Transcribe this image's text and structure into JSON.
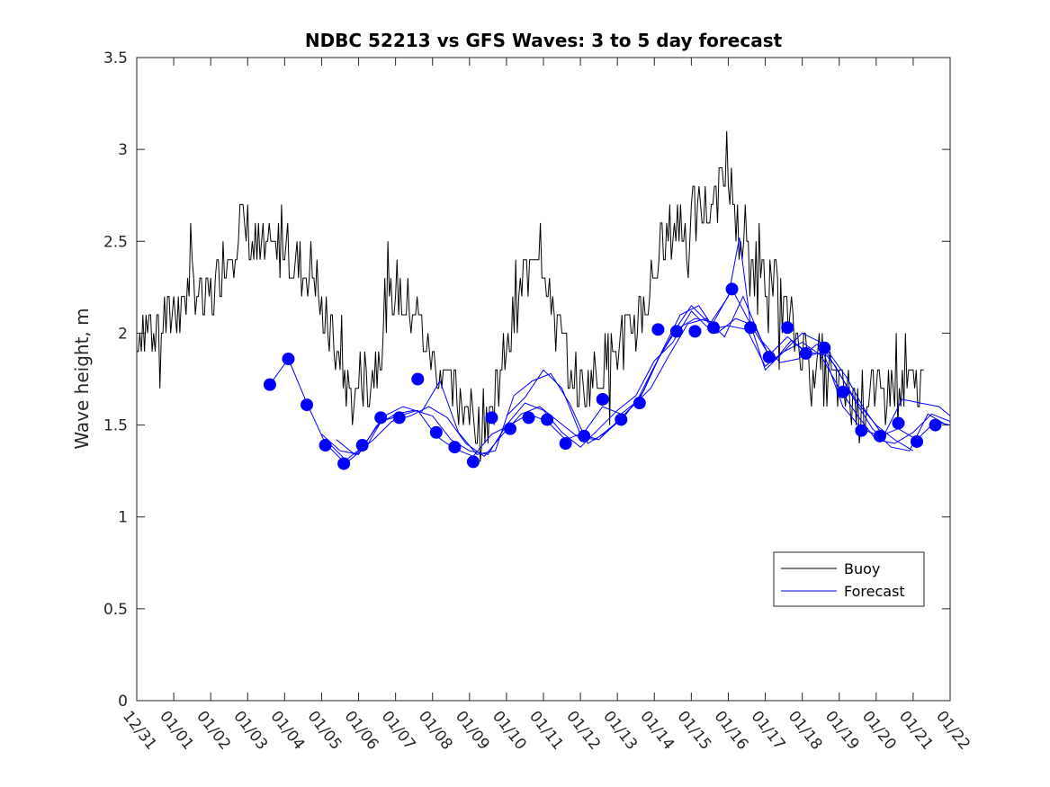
{
  "chart_data": {
    "type": "line",
    "title": "NDBC 52213 vs GFS Waves: 3 to 5 day forecast",
    "xlabel": "",
    "ylabel": "Wave height, m",
    "ylim": [
      0,
      3.5
    ],
    "xlim_days": [
      0,
      22
    ],
    "yticks": [
      "0",
      "0.5",
      "1",
      "1.5",
      "2",
      "2.5",
      "3",
      "3.5"
    ],
    "xticks": [
      "12/31",
      "01/01",
      "01/02",
      "01/03",
      "01/04",
      "01/05",
      "01/06",
      "01/07",
      "01/08",
      "01/09",
      "01/10",
      "01/11",
      "01/12",
      "01/13",
      "01/14",
      "01/15",
      "01/16",
      "01/17",
      "01/18",
      "01/19",
      "01/20",
      "01/21",
      "01/22"
    ],
    "legend": {
      "position": "lower-right",
      "entries": [
        "Buoy",
        "Forecast"
      ]
    },
    "colors": {
      "buoy": "#000000",
      "forecast": "#0000ff",
      "axes": "#262626"
    },
    "buoy": {
      "name": "Buoy",
      "x": [
        0.0,
        0.1,
        0.3,
        0.5,
        0.7,
        1.0,
        1.2,
        1.5,
        1.8,
        2.0,
        2.3,
        2.6,
        2.9,
        3.2,
        3.5,
        3.8,
        4.1,
        4.3,
        4.5,
        4.7,
        4.9,
        5.1,
        5.3,
        5.5,
        5.7,
        5.9,
        6.1,
        6.3,
        6.5,
        6.7,
        6.9,
        7.1,
        7.3,
        7.5,
        7.7,
        7.9,
        8.1,
        8.3,
        8.5,
        8.7,
        8.9,
        9.1,
        9.3,
        9.5,
        9.7,
        9.9,
        10.1,
        10.3,
        10.5,
        10.7,
        10.9,
        11.1,
        11.3,
        11.5,
        11.7,
        11.9,
        12.1,
        12.3,
        12.5,
        12.7,
        12.9,
        13.1,
        13.3,
        13.5,
        13.7,
        13.9,
        14.1,
        14.3,
        14.5,
        14.7,
        14.9,
        15.1,
        15.3,
        15.5,
        15.7,
        15.9,
        16.1,
        16.3,
        16.5,
        16.7,
        16.9,
        17.1,
        17.3,
        17.5,
        17.7,
        17.9,
        18.1,
        18.3,
        18.5,
        18.7,
        18.9,
        19.1,
        19.3,
        19.5,
        19.7,
        19.9,
        20.1,
        20.3,
        20.5,
        20.7,
        20.9,
        21.1,
        21.3
      ],
      "values": [
        1.95,
        2.05,
        2.0,
        2.1,
        2.05,
        2.15,
        2.2,
        2.25,
        2.15,
        2.2,
        2.35,
        2.5,
        2.6,
        2.45,
        2.4,
        2.45,
        2.5,
        2.35,
        2.3,
        2.35,
        2.25,
        2.05,
        1.95,
        1.8,
        1.7,
        1.65,
        1.75,
        1.7,
        1.85,
        2.05,
        2.2,
        2.25,
        2.1,
        2.15,
        2.05,
        1.9,
        1.85,
        1.75,
        1.7,
        1.65,
        1.6,
        1.55,
        1.5,
        1.55,
        1.65,
        1.8,
        1.95,
        2.15,
        2.3,
        2.45,
        2.5,
        2.35,
        2.1,
        1.95,
        1.85,
        1.75,
        1.7,
        1.75,
        1.8,
        1.85,
        1.9,
        1.95,
        2.0,
        2.05,
        2.15,
        2.25,
        2.4,
        2.5,
        2.55,
        2.6,
        2.55,
        2.6,
        2.65,
        2.7,
        2.8,
        2.9,
        2.75,
        2.55,
        2.4,
        2.35,
        2.45,
        2.3,
        2.2,
        2.15,
        2.05,
        1.95,
        1.9,
        1.85,
        1.8,
        1.75,
        1.7,
        1.7,
        1.65,
        1.6,
        1.65,
        1.7,
        1.65,
        1.7,
        1.7,
        1.7,
        1.7,
        1.7,
        1.7
      ]
    },
    "forecast_series": [
      {
        "name": "Forecast",
        "x": [
          3.6,
          4.1,
          4.6,
          5.1,
          5.6,
          6.1,
          6.6,
          7.1,
          7.6,
          8.1,
          8.6,
          9.1,
          9.6,
          10.1,
          10.6,
          11.1,
          11.6,
          12.1,
          12.6,
          13.1,
          13.6,
          14.1,
          14.6,
          15.1,
          15.6,
          16.1,
          16.6,
          17.1,
          17.6,
          18.1,
          18.6,
          19.1,
          19.6,
          20.1,
          20.6,
          21.1,
          21.6,
          22.0
        ],
        "values": [
          1.72,
          1.86,
          1.62,
          1.4,
          1.3,
          1.38,
          1.52,
          1.55,
          1.58,
          1.44,
          1.37,
          1.33,
          1.45,
          1.5,
          1.56,
          1.52,
          1.42,
          1.46,
          1.6,
          1.56,
          1.64,
          1.86,
          2.02,
          2.08,
          2.06,
          2.24,
          2.05,
          1.88,
          1.98,
          1.9,
          1.88,
          1.6,
          1.48,
          1.44,
          1.48,
          1.42,
          1.52,
          1.5
        ]
      },
      {
        "name": "Forecast",
        "x": [
          5.0,
          5.5,
          6.0,
          6.5,
          7.0,
          7.5,
          8.0,
          8.5,
          9.0,
          9.5,
          10.0,
          10.5,
          11.0,
          11.5,
          12.0,
          12.5,
          13.0,
          13.5,
          14.0,
          14.5,
          15.0,
          15.5,
          16.0,
          16.5,
          17.0,
          17.5,
          18.0,
          18.5,
          19.0,
          19.5,
          20.0,
          20.5,
          21.0,
          21.5,
          22.0
        ],
        "values": [
          1.45,
          1.36,
          1.34,
          1.5,
          1.56,
          1.58,
          1.55,
          1.42,
          1.36,
          1.34,
          1.5,
          1.62,
          1.58,
          1.46,
          1.38,
          1.48,
          1.58,
          1.66,
          1.85,
          1.95,
          2.12,
          2.02,
          2.04,
          2.02,
          1.82,
          1.9,
          1.95,
          1.88,
          1.7,
          1.55,
          1.42,
          1.4,
          1.46,
          1.56,
          1.52
        ]
      },
      {
        "name": "Forecast",
        "x": [
          5.2,
          5.7,
          6.2,
          6.7,
          7.2,
          7.7,
          8.2,
          8.7,
          9.2,
          9.7,
          10.2,
          10.7,
          11.2,
          11.7,
          12.2,
          12.7,
          13.2,
          13.7,
          14.2,
          14.7,
          15.2,
          15.7,
          16.2,
          16.7,
          17.2,
          17.7,
          18.2,
          18.7,
          19.2,
          19.7,
          20.2,
          20.7,
          21.2,
          21.7,
          22.0
        ],
        "values": [
          1.4,
          1.3,
          1.38,
          1.55,
          1.6,
          1.57,
          1.74,
          1.46,
          1.34,
          1.36,
          1.66,
          1.74,
          1.78,
          1.62,
          1.4,
          1.46,
          1.55,
          1.68,
          1.9,
          2.1,
          2.15,
          2.0,
          2.08,
          2.04,
          1.84,
          1.96,
          1.88,
          1.9,
          1.76,
          1.58,
          1.44,
          1.64,
          1.62,
          1.6,
          1.55
        ]
      },
      {
        "name": "Forecast",
        "x": [
          5.4,
          5.9,
          6.4,
          6.9,
          7.4,
          7.9,
          8.4,
          8.9,
          9.4,
          9.9,
          10.4,
          10.9,
          11.4,
          11.9,
          12.4,
          12.9,
          13.4,
          13.9,
          14.4,
          14.9,
          15.4,
          15.9,
          16.4,
          16.9,
          17.4,
          17.9,
          18.4,
          18.9,
          19.4,
          19.9,
          20.4,
          20.9,
          21.4,
          21.9
        ],
        "values": [
          1.42,
          1.34,
          1.42,
          1.52,
          1.55,
          1.6,
          1.54,
          1.4,
          1.33,
          1.45,
          1.56,
          1.6,
          1.52,
          1.44,
          1.42,
          1.5,
          1.6,
          1.7,
          1.88,
          2.05,
          2.08,
          1.98,
          2.2,
          1.96,
          1.84,
          1.86,
          1.94,
          1.82,
          1.64,
          1.48,
          1.38,
          1.36,
          1.56,
          1.5
        ]
      },
      {
        "name": "Forecast",
        "x": [
          10.0,
          10.5,
          11.0,
          11.5,
          12.0,
          12.5,
          13.0,
          13.5,
          14.0,
          14.5,
          15.0,
          15.5,
          16.0,
          16.3,
          16.6,
          17.0,
          17.5,
          18.0,
          18.5,
          19.0,
          19.5,
          20.0,
          20.5,
          21.0
        ],
        "values": [
          1.55,
          1.65,
          1.8,
          1.7,
          1.45,
          1.42,
          1.52,
          1.62,
          1.82,
          2.0,
          2.15,
          2.05,
          2.2,
          2.52,
          2.05,
          1.8,
          1.9,
          2.0,
          1.95,
          1.78,
          1.62,
          1.5,
          1.42,
          1.36
        ]
      }
    ],
    "forecast_points": {
      "x": [
        3.6,
        4.1,
        4.6,
        5.1,
        5.6,
        6.1,
        6.6,
        7.1,
        7.6,
        8.1,
        8.6,
        9.1,
        9.6,
        10.1,
        10.6,
        11.1,
        11.6,
        12.1,
        12.6,
        13.1,
        13.6,
        14.1,
        14.6,
        15.1,
        15.6,
        16.1,
        16.6,
        17.1,
        17.6,
        18.1,
        18.6,
        19.1,
        19.6,
        20.1,
        20.6,
        21.1,
        21.6
      ],
      "values": [
        1.72,
        1.86,
        1.61,
        1.39,
        1.29,
        1.39,
        1.54,
        1.54,
        1.75,
        1.46,
        1.38,
        1.3,
        1.54,
        1.48,
        1.54,
        1.53,
        1.4,
        1.44,
        1.64,
        1.53,
        1.62,
        2.02,
        2.01,
        2.01,
        2.03,
        2.24,
        2.03,
        1.87,
        2.03,
        1.89,
        1.92,
        1.68,
        1.47,
        1.44,
        1.51,
        1.41,
        1.5
      ]
    }
  }
}
